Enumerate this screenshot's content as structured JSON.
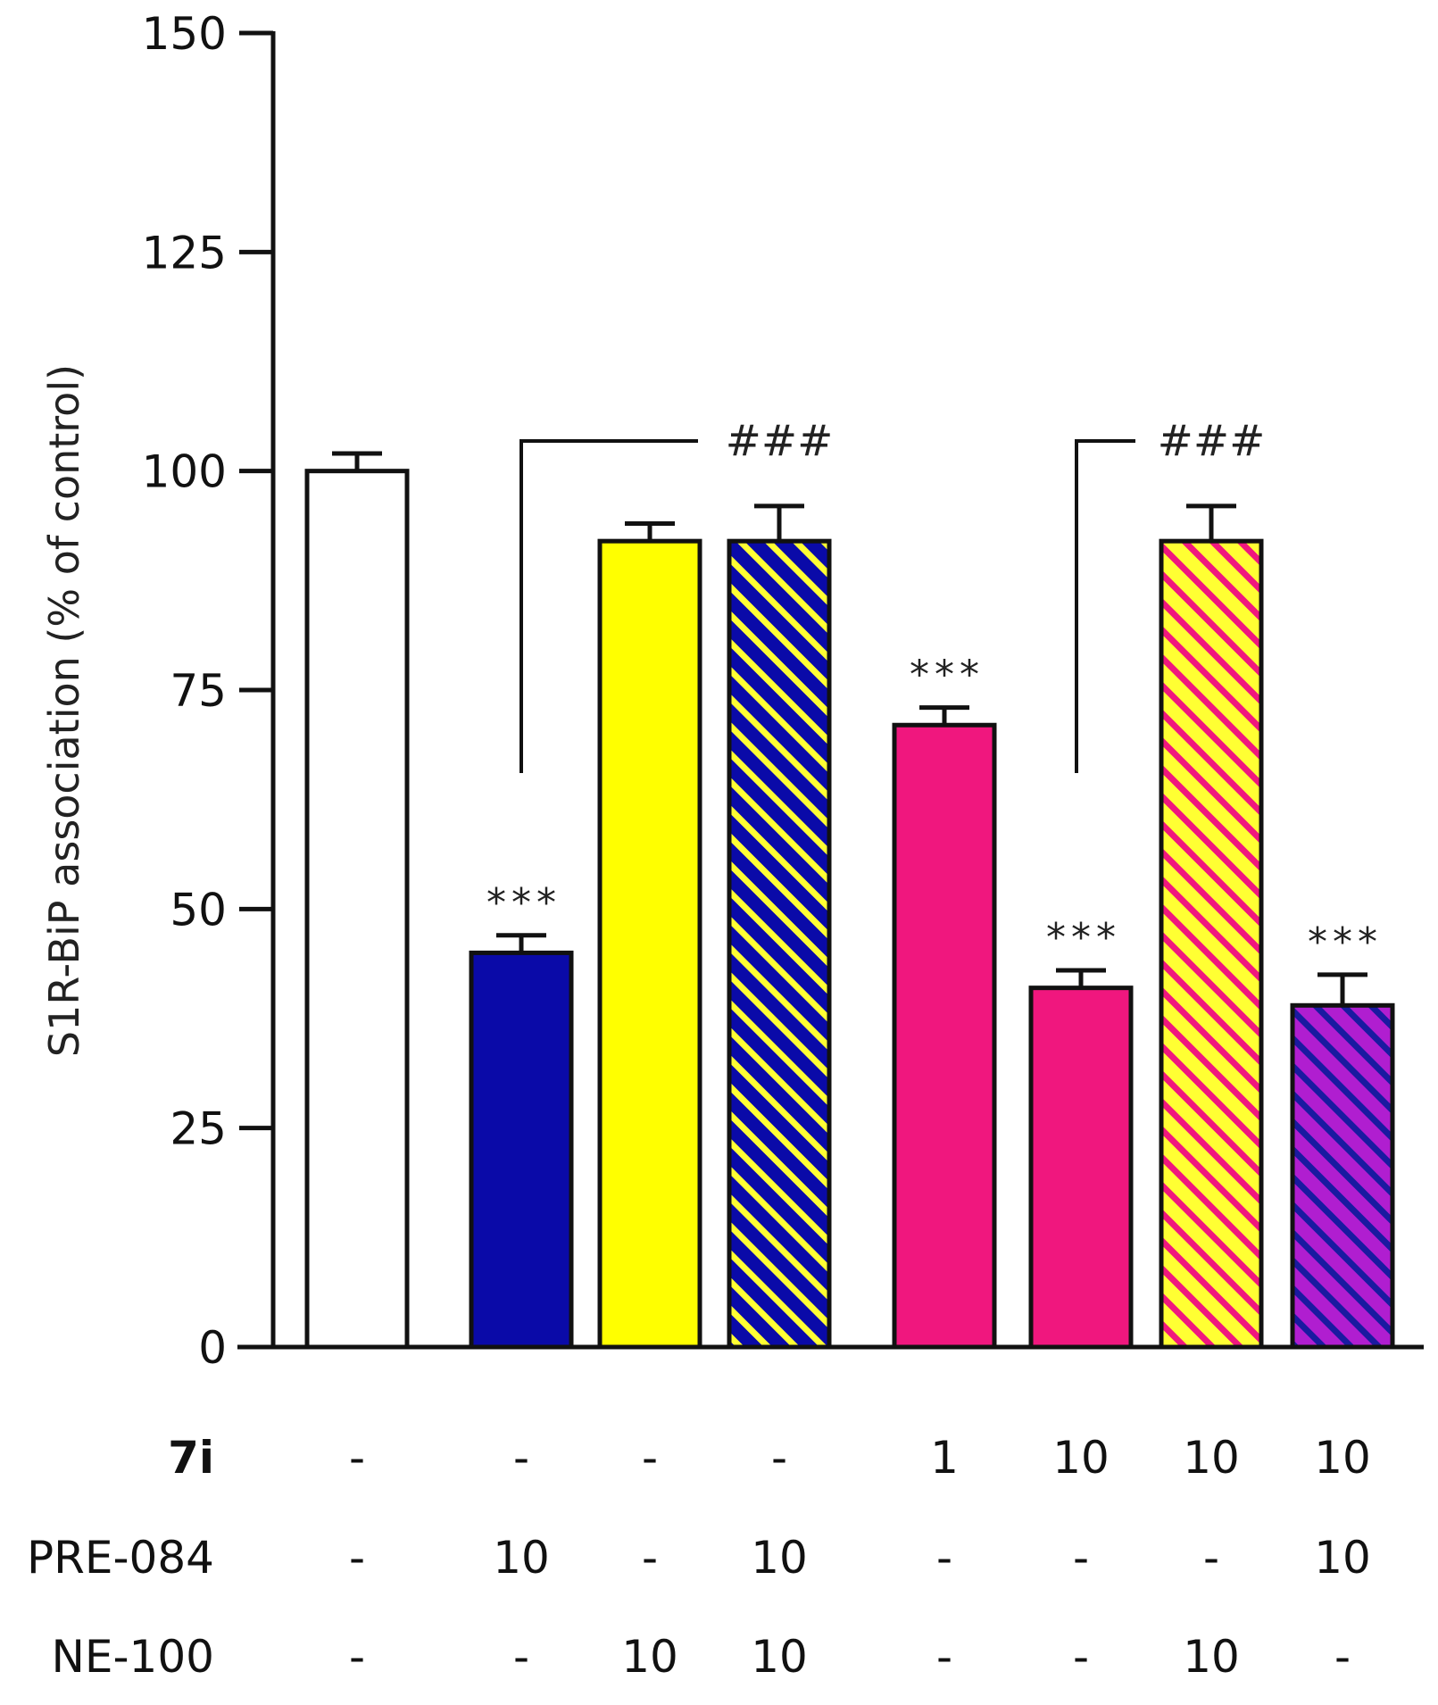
{
  "chart_data": {
    "type": "bar",
    "title": "",
    "xlabel": "",
    "ylabel": "S1R-BiP association (% of control)",
    "ylim": [
      0,
      150
    ],
    "yticks": [
      "0",
      "25",
      "50",
      "75",
      "100",
      "125",
      "150"
    ],
    "grid": false,
    "bars": [
      {
        "value": 100,
        "error": 2,
        "fill": "#ffffff",
        "stripe": null,
        "sig": ""
      },
      {
        "value": 45,
        "error": 2,
        "fill": "#0a0aa8",
        "stripe": null,
        "sig": "***"
      },
      {
        "value": 92,
        "error": 2,
        "fill": "#ffff00",
        "stripe": null,
        "sig": ""
      },
      {
        "value": 92,
        "error": 4,
        "fill": "#0a0aa8",
        "stripe": "#ffff33",
        "sig": ""
      },
      {
        "value": 71,
        "error": 2,
        "fill": "#f0177e",
        "stripe": null,
        "sig": "***"
      },
      {
        "value": 41,
        "error": 2,
        "fill": "#f0177e",
        "stripe": null,
        "sig": "***"
      },
      {
        "value": 92,
        "error": 4,
        "fill": "#ffff33",
        "stripe": "#f0177e",
        "sig": ""
      },
      {
        "value": 39,
        "error": 3.5,
        "fill": "#b01ed0",
        "stripe": "#1a1aa0",
        "sig": "***"
      }
    ],
    "brackets": [
      {
        "from_bar": 1,
        "to_bar": 3,
        "label": "###"
      },
      {
        "from_bar": 5,
        "to_bar": 6,
        "label": "###"
      }
    ],
    "treatment_table": {
      "rows": [
        {
          "label": "7i",
          "bold": true,
          "cells": [
            "-",
            "-",
            "-",
            "-",
            "1",
            "10",
            "10",
            "10"
          ]
        },
        {
          "label": "PRE-084",
          "bold": false,
          "cells": [
            "-",
            "10",
            "-",
            "10",
            "-",
            "-",
            "-",
            "10"
          ]
        },
        {
          "label": "NE-100",
          "bold": false,
          "cells": [
            "-",
            "-",
            "10",
            "10",
            "-",
            "-",
            "10",
            "-"
          ]
        }
      ]
    }
  }
}
